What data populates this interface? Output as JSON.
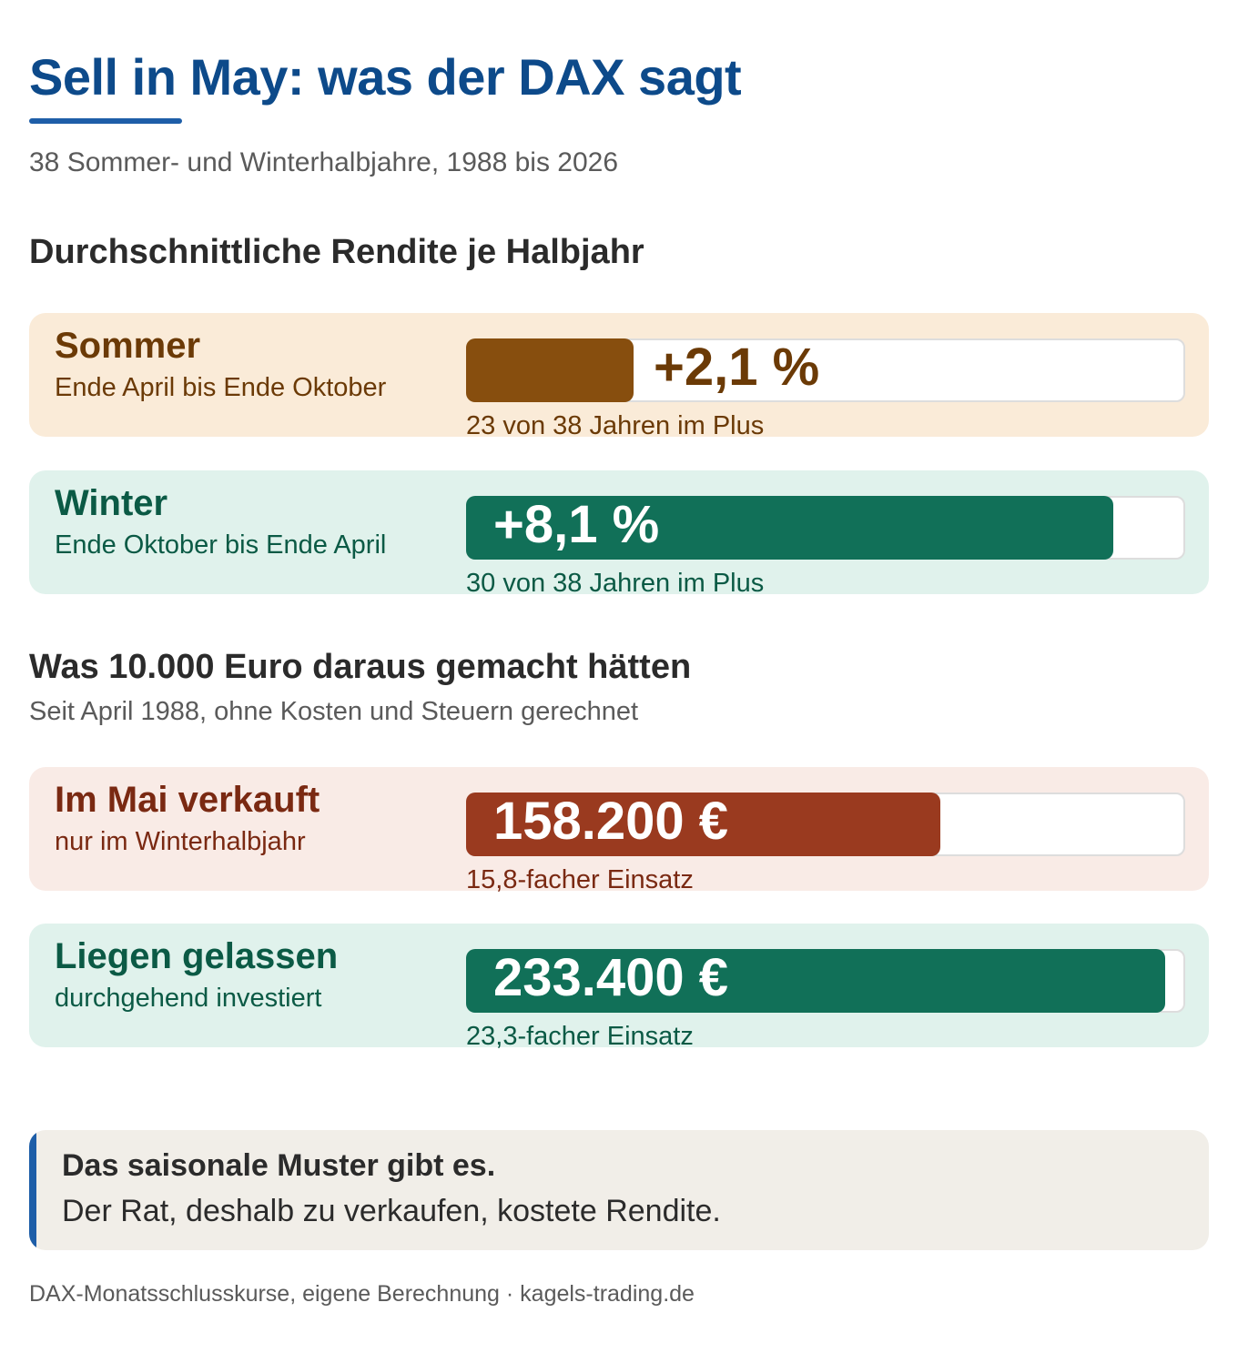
{
  "title": "Sell in May: was der DAX sagt",
  "subtitle": "38 Sommer- und Winterhalbjahre, 1988 bis 2026",
  "colors": {
    "accent_blue": "#0d4a8a",
    "summer_bg": "#faebd8",
    "summer_bar": "#874e0e",
    "summer_text": "#6b3a06",
    "winter_bg": "#e0f2ec",
    "winter_bar": "#117058",
    "winter_text": "#0b5a45",
    "sold_bg": "#f9ebe6",
    "sold_bar": "#9a3a1f",
    "sold_text": "#7a2912"
  },
  "section1": {
    "heading": "Durchschnittliche Rendite je Halbjahr",
    "cards": [
      {
        "title": "Sommer",
        "desc": "Ende April bis Ende Oktober",
        "value_label": "+2,1 %",
        "note": "23 von 38 Jahren im Plus"
      },
      {
        "title": "Winter",
        "desc": "Ende Oktober bis Ende April",
        "value_label": "+8,1 %",
        "note": "30 von 38 Jahren im Plus"
      }
    ]
  },
  "section2": {
    "heading": "Was 10.000 Euro daraus gemacht hätten",
    "sub": "Seit April 1988, ohne Kosten und Steuern gerechnet",
    "cards": [
      {
        "title": "Im Mai verkauft",
        "desc": "nur im Winterhalbjahr",
        "value_label": "158.200 €",
        "note": "15,8-facher Einsatz"
      },
      {
        "title": "Liegen gelassen",
        "desc": "durchgehend investiert",
        "value_label": "233.400 €",
        "note": "23,3-facher Einsatz"
      }
    ]
  },
  "takeaway": {
    "bold": "Das saisonale Muster gibt es.",
    "text": "Der Rat, deshalb zu verkaufen, kostete Rendite."
  },
  "source": "DAX-Monatsschlusskurse, eigene Berechnung · kagels-trading.de",
  "chart_data": [
    {
      "type": "bar",
      "title": "Durchschnittliche Rendite je Halbjahr",
      "categories": [
        "Sommer",
        "Winter"
      ],
      "values": [
        2.1,
        8.1
      ],
      "unit": "%",
      "ylim": [
        0,
        9
      ],
      "positive_years": [
        23,
        30
      ],
      "total_years": 38
    },
    {
      "type": "bar",
      "title": "Was 10.000 Euro daraus gemacht hätten",
      "categories": [
        "Im Mai verkauft",
        "Liegen gelassen"
      ],
      "values": [
        158200,
        233400
      ],
      "unit": "€",
      "ylim": [
        0,
        240000
      ],
      "multiples": [
        15.8,
        23.3
      ]
    }
  ]
}
